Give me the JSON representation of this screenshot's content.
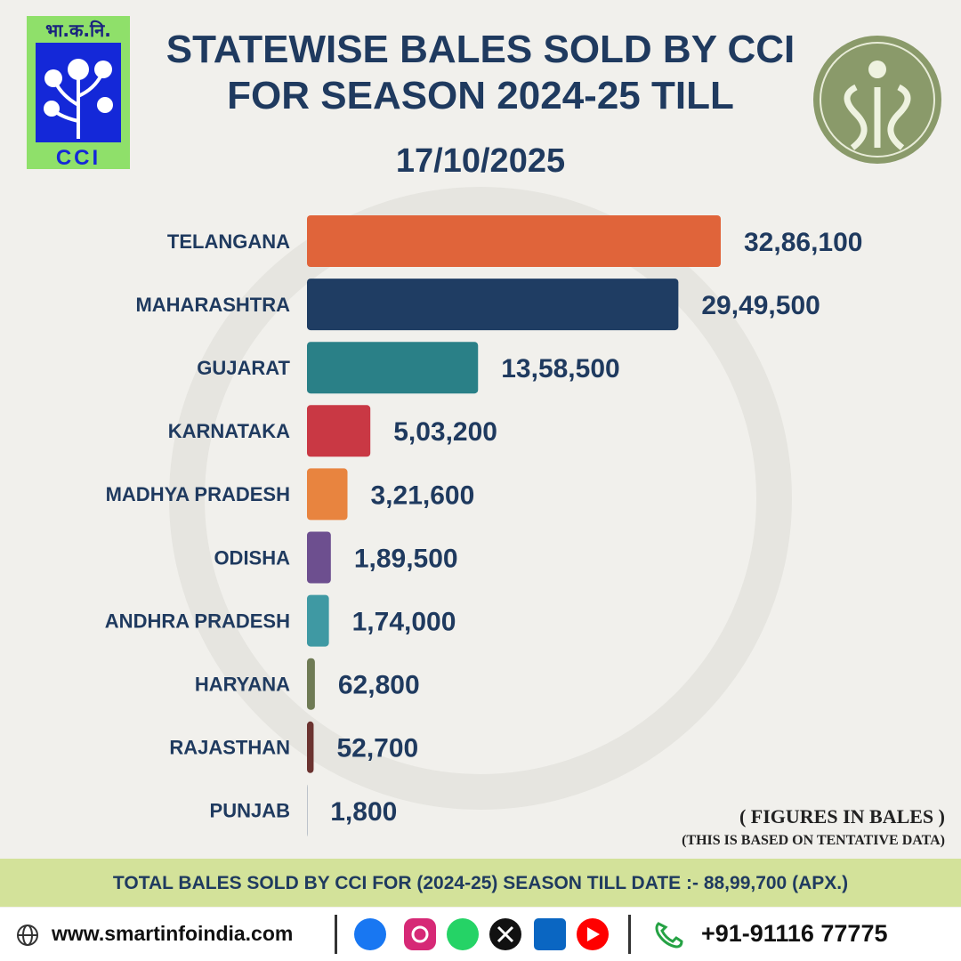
{
  "logo_left": {
    "top_text": "भा.क.नि.",
    "bottom_text": "CCI"
  },
  "chart_data": {
    "type": "bar",
    "orientation": "horizontal",
    "title": "STATEWISE BALES SOLD BY CCI FOR SEASON 2024-25 TILL",
    "subtitle": "17/10/2025",
    "categories": [
      "TELANGANA",
      "MAHARASHTRA",
      "GUJARAT",
      "KARNATAKA",
      "MADHYA PRADESH",
      "ODISHA",
      "ANDHRA PRADESH",
      "HARYANA",
      "RAJASTHAN",
      "PUNJAB"
    ],
    "values": [
      3286100,
      2949500,
      1358500,
      503200,
      321600,
      189500,
      174000,
      62800,
      52700,
      1800
    ],
    "value_labels": [
      "32,86,100",
      "29,49,500",
      "13,58,500",
      "5,03,200",
      "3,21,600",
      "1,89,500",
      "1,74,000",
      "62,800",
      "52,700",
      "1,800"
    ],
    "colors": [
      "#e0643a",
      "#1f3d63",
      "#2a8087",
      "#c93844",
      "#e8843f",
      "#6d4f8f",
      "#3f99a3",
      "#6f7b55",
      "#6b3330",
      "#1f3d63"
    ],
    "notes": [
      "( FIGURES IN BALES )",
      "(THIS IS BASED ON TENTATIVE DATA)"
    ]
  },
  "banner": "TOTAL BALES SOLD BY CCI FOR (2024-25) SEASON TILL DATE :- 88,99,700 (APX.)",
  "footer": {
    "website": "www.smartinfoindia.com",
    "phone": "+91-91116 77775"
  }
}
